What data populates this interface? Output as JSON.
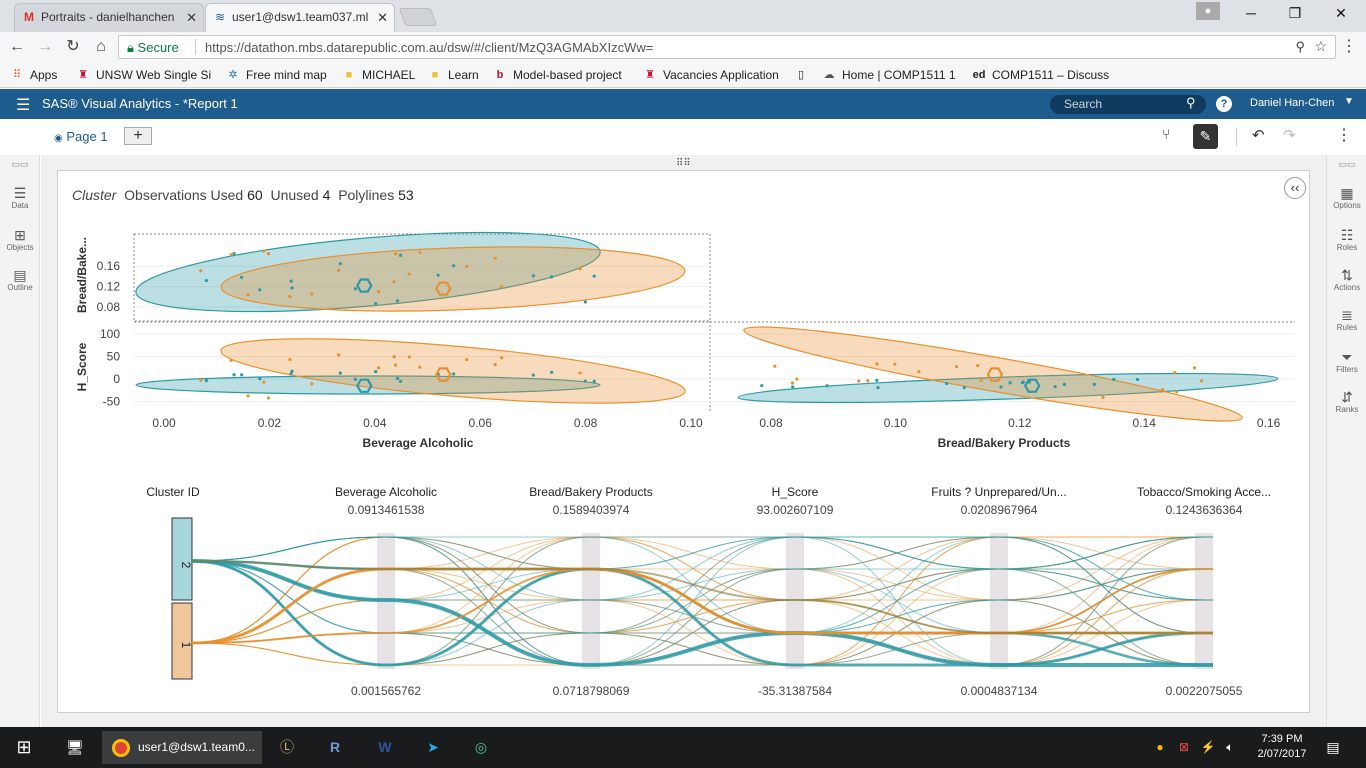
{
  "browser": {
    "tabs": [
      {
        "label": "Portraits - danielhanchen",
        "icon": "gmail-icon"
      },
      {
        "label": "user1@dsw1.team037.ml",
        "icon": "sas-icon"
      }
    ],
    "address": {
      "secure_label": "Secure",
      "url": "https://datathon.mbs.datarepublic.com.au/dsw/#/client/MzQ3AGMAbXIzcWw="
    },
    "bookmarks": [
      {
        "label": "Apps"
      },
      {
        "label": "UNSW Web Single Si"
      },
      {
        "label": "Free mind map"
      },
      {
        "label": "MICHAEL"
      },
      {
        "label": "Learn"
      },
      {
        "label": "Model-based project"
      },
      {
        "label": "Vacancies Application"
      },
      {
        "label": "Home | COMP1511 1"
      },
      {
        "label": "COMP1511 – Discuss"
      }
    ]
  },
  "sas": {
    "title": "SAS® Visual Analytics - *Report 1",
    "search_placeholder": "Search",
    "user": "Daniel Han-Chen",
    "page_tab": "Page 1"
  },
  "left_panel": [
    "Data",
    "Objects",
    "Outline"
  ],
  "right_panel": [
    "Options",
    "Roles",
    "Actions",
    "Rules",
    "Filters",
    "Ranks"
  ],
  "report": {
    "title_italic": "Cluster",
    "obs_label": "Observations Used",
    "obs_used": "60",
    "unused_label": "Unused",
    "unused": "4",
    "poly_label": "Polylines",
    "polylines": "53"
  },
  "chart_data": [
    {
      "type": "scatter",
      "name": "cluster-matrix",
      "colors": {
        "cluster1": "#e8902e",
        "cluster2": "#2c9aa6"
      },
      "axes": {
        "bread_y_ticks": [
          "0.16",
          "0.12",
          "0.08"
        ],
        "bread_y_label": "Bread/Bake...",
        "hscore_y_ticks": [
          "100",
          "50",
          "0",
          "-50"
        ],
        "hscore_y_label": "H_Score",
        "bev_x_ticks": [
          "0.00",
          "0.02",
          "0.04",
          "0.06",
          "0.08",
          "0.10"
        ],
        "bev_x_label": "Beverage Alcoholic",
        "bread_x_ticks": [
          "0.08",
          "0.10",
          "0.12",
          "0.14",
          "0.16"
        ],
        "bread_x_label": "Bread/Bakery Products"
      },
      "centroids": {
        "cluster2": {
          "beverage": 0.038,
          "bread": 0.122,
          "h_score": -15
        },
        "cluster1": {
          "beverage": 0.053,
          "bread": 0.116,
          "h_score": 10
        }
      }
    },
    {
      "type": "parallel_coordinates",
      "name": "cluster-parallel",
      "cluster_axis_label": "Cluster ID",
      "clusters": [
        "2",
        "1"
      ],
      "axes": [
        {
          "label": "Beverage Alcoholic",
          "max": "0.0913461538",
          "min": "0.001565762"
        },
        {
          "label": "Bread/Bakery Products",
          "max": "0.1589403974",
          "min": "0.0718798069"
        },
        {
          "label": "H_Score",
          "max": "93.002607109",
          "min": "-35.31387584"
        },
        {
          "label": "Fruits ? Unprepared/Un...",
          "max": "0.0208967964",
          "min": "0.0004837134"
        },
        {
          "label": "Tobacco/Smoking Acce...",
          "max": "0.1243636364",
          "min": "0.0022075055"
        }
      ]
    }
  ],
  "taskbar": {
    "active_window": "user1@dsw1.team0...",
    "time": "7:39 PM",
    "date": "2/07/2017"
  }
}
